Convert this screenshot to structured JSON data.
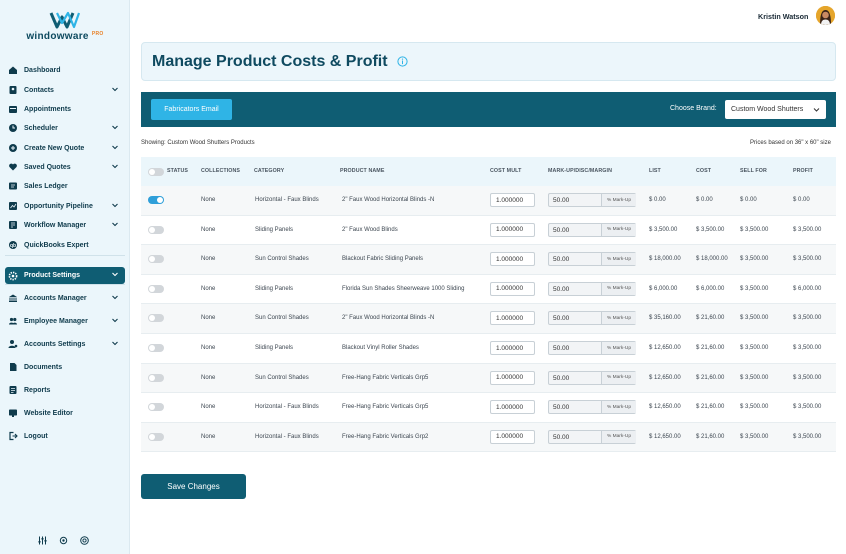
{
  "app": {
    "logo_text": "windowware",
    "logo_badge": "PRO"
  },
  "user": {
    "name": "Kristin Watson"
  },
  "sidebar": {
    "items": [
      {
        "label": "Dashboard",
        "icon": "home-icon",
        "chevron": false
      },
      {
        "label": "Contacts",
        "icon": "contacts-icon",
        "chevron": true
      },
      {
        "label": "Appointments",
        "icon": "calendar-icon",
        "chevron": false
      },
      {
        "label": "Scheduler",
        "icon": "clock-icon",
        "chevron": true
      },
      {
        "label": "Create New Quote",
        "icon": "plus-circle-icon",
        "chevron": true
      },
      {
        "label": "Saved Quotes",
        "icon": "heart-icon",
        "chevron": true
      },
      {
        "label": "Sales Ledger",
        "icon": "ledger-icon",
        "chevron": false
      },
      {
        "label": "Opportunity Pipeline",
        "icon": "pipeline-icon",
        "chevron": true
      },
      {
        "label": "Workflow Manager",
        "icon": "workflow-icon",
        "chevron": true
      },
      {
        "label": "QuickBooks Expert",
        "icon": "quickbooks-icon",
        "chevron": false
      },
      {
        "label": "Product Settings",
        "icon": "gear-icon",
        "chevron": true
      },
      {
        "label": "Accounts Manager",
        "icon": "accounts-icon",
        "chevron": true
      },
      {
        "label": "Employee Manager",
        "icon": "employee-icon",
        "chevron": true
      },
      {
        "label": "Accounts Settings",
        "icon": "user-settings-icon",
        "chevron": true
      },
      {
        "label": "Documents",
        "icon": "document-icon",
        "chevron": false
      },
      {
        "label": "Reports",
        "icon": "reports-icon",
        "chevron": false
      },
      {
        "label": "Website Editor",
        "icon": "website-icon",
        "chevron": false
      },
      {
        "label": "Logout",
        "icon": "logout-icon",
        "chevron": false
      }
    ]
  },
  "page": {
    "title": "Manage Product Costs & Profit"
  },
  "toolbar": {
    "fabricators_email": "Fabricators Email",
    "choose_brand_label": "Choose Brand:",
    "brand_selected": "Custom Wood Shutters"
  },
  "showing_text": "Showing: Custom Wood Shutters Products",
  "prices_text": "Prices based on 36\" x 60\" size",
  "table": {
    "headers": {
      "status": "STATUS",
      "collections": "COLLECTIONS",
      "category": "CATEGORY",
      "product_name": "PRODUCT NAME",
      "cost_mult": "COST MULT",
      "markup": "MARK-UP/DISC/MARGIN",
      "list": "LIST",
      "cost": "COST",
      "sell_for": "SELL FOR",
      "profit": "PROFIT"
    },
    "rows": [
      {
        "status_on": true,
        "collections": "None",
        "category": "Horizontal - Faux Blinds",
        "product": "2\" Faux Wood Horizontal Blinds -N",
        "cost_mult": "1.000000",
        "markup": "50.00",
        "markup_unit": "% Mark-Up",
        "list": "$ 0.00",
        "cost": "$ 0.00",
        "sell_for": "$ 0.00",
        "profit": "$ 0.00"
      },
      {
        "status_on": false,
        "collections": "None",
        "category": "Sliding Panels",
        "product": "2\" Faux Wood Blinds",
        "cost_mult": "1.000000",
        "markup": "50.00",
        "markup_unit": "% Mark-Up",
        "list": "$ 3,500.00",
        "cost": "$ 3,500.00",
        "sell_for": "$ 3,500.00",
        "profit": "$ 3,500.00"
      },
      {
        "status_on": false,
        "collections": "None",
        "category": "Sun Control Shades",
        "product": "Blackout Fabric Sliding Panels",
        "cost_mult": "1.000000",
        "markup": "50.00",
        "markup_unit": "% Mark-Up",
        "list": "$ 18,000.00",
        "cost": "$ 18,000.00",
        "sell_for": "$ 3,500.00",
        "profit": "$ 3,500.00"
      },
      {
        "status_on": false,
        "collections": "None",
        "category": "Sliding Panels",
        "product": "Florida Sun Shades Sheerweave 1000 Sliding",
        "cost_mult": "1.000000",
        "markup": "50.00",
        "markup_unit": "% Mark-Up",
        "list": "$ 6,000.00",
        "cost": "$ 6,000.00",
        "sell_for": "$ 3,500.00",
        "profit": "$ 6,000.00"
      },
      {
        "status_on": false,
        "collections": "None",
        "category": "Sun Control Shades",
        "product": "2\" Faux Wood Horizontal Blinds -N",
        "cost_mult": "1.000000",
        "markup": "50.00",
        "markup_unit": "% Mark-Up",
        "list": "$ 35,160.00",
        "cost": "$ 21,60.00",
        "sell_for": "$ 3,500.00",
        "profit": "$ 3,500.00"
      },
      {
        "status_on": false,
        "collections": "None",
        "category": "Sliding Panels",
        "product": "Blackout Vinyl Roller Shades",
        "cost_mult": "1.000000",
        "markup": "50.00",
        "markup_unit": "% Mark-Up",
        "list": "$ 12,650.00",
        "cost": "$ 21,60.00",
        "sell_for": "$ 3,500.00",
        "profit": "$ 3,500.00"
      },
      {
        "status_on": false,
        "collections": "None",
        "category": "Sun Control Shades",
        "product": "Free-Hang Fabric Verticals Grp5",
        "cost_mult": "1.000000",
        "markup": "50.00",
        "markup_unit": "% Mark-Up",
        "list": "$ 12,650.00",
        "cost": "$ 21,60.00",
        "sell_for": "$ 3,500.00",
        "profit": "$ 3,500.00"
      },
      {
        "status_on": false,
        "collections": "None",
        "category": "Horizontal - Faux Blinds",
        "product": "Free-Hang Fabric Verticals Grp5",
        "cost_mult": "1.000000",
        "markup": "50.00",
        "markup_unit": "% Mark-Up",
        "list": "$ 12,650.00",
        "cost": "$ 21,60.00",
        "sell_for": "$ 3,500.00",
        "profit": "$ 3,500.00"
      },
      {
        "status_on": false,
        "collections": "None",
        "category": "Horizontal - Faux Blinds",
        "product": "Free-Hang Fabric Verticals Grp2",
        "cost_mult": "1.000000",
        "markup": "50.00",
        "markup_unit": "% Mark-Up",
        "list": "$ 12,650.00",
        "cost": "$ 21,60.00",
        "sell_for": "$ 3,500.00",
        "profit": "$ 3,500.00"
      }
    ]
  },
  "save_label": "Save Changes",
  "colors": {
    "primary": "#0f5d73",
    "accent": "#2fb4e6",
    "sidebar_bg": "#ebf6fb"
  }
}
